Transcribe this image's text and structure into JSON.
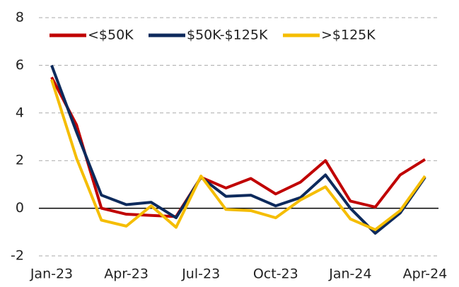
{
  "chart_data": {
    "type": "line",
    "categories": [
      "Jan-23",
      null,
      null,
      "Apr-23",
      null,
      null,
      "Jul-23",
      null,
      null,
      "Oct-23",
      null,
      null,
      "Jan-24",
      null,
      null,
      "Apr-24"
    ],
    "series": [
      {
        "name": "<$50K",
        "color": "#c00000",
        "values": [
          5.5,
          3.5,
          0.0,
          -0.25,
          -0.3,
          -0.35,
          1.3,
          0.85,
          1.25,
          0.6,
          1.1,
          2.0,
          0.3,
          0.05,
          1.4,
          2.05
        ]
      },
      {
        "name": "$50K-$125K",
        "color": "#0d2a5c",
        "values": [
          6.0,
          3.2,
          0.55,
          0.15,
          0.25,
          -0.4,
          1.3,
          0.5,
          0.55,
          0.1,
          0.45,
          1.4,
          0.0,
          -1.05,
          -0.2,
          1.3
        ]
      },
      {
        "name": ">$125K",
        "color": "#f5bd00",
        "values": [
          5.4,
          2.1,
          -0.5,
          -0.75,
          0.1,
          -0.8,
          1.35,
          -0.05,
          -0.1,
          -0.4,
          0.35,
          0.9,
          -0.45,
          -0.9,
          -0.1,
          1.35
        ]
      }
    ],
    "ylim": [
      -2,
      8
    ],
    "yticks": [
      -2,
      0,
      2,
      4,
      6,
      8
    ],
    "grid": true,
    "legend": "top"
  }
}
